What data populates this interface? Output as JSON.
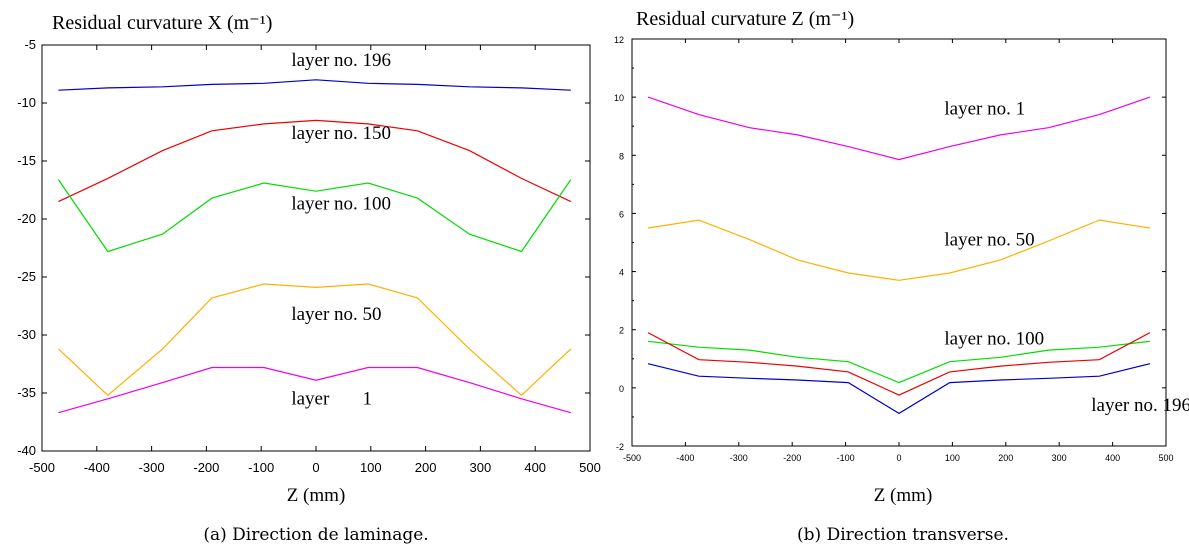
{
  "chart_data": [
    {
      "type": "line",
      "title": "Residual curvature X (m⁻¹)",
      "xlabel": "Z (mm)",
      "ylabel": "",
      "caption": "(a) Direction de laminage.",
      "xlim": [
        -500,
        500
      ],
      "ylim": [
        -40,
        -5
      ],
      "xticks": [
        -500,
        -400,
        -300,
        -200,
        -100,
        0,
        100,
        200,
        300,
        400,
        500
      ],
      "yticks": [
        -5,
        -10,
        -15,
        -20,
        -25,
        -30,
        -35,
        -40
      ],
      "series": [
        {
          "color": "#0000cc",
          "x": [
            -470,
            -380,
            -280,
            -190,
            -95,
            0,
            95,
            185,
            280,
            375,
            465
          ],
          "y": [
            -8.9,
            -8.7,
            -8.6,
            -8.4,
            -8.3,
            -8.0,
            -8.3,
            -8.4,
            -8.6,
            -8.7,
            -8.9
          ]
        },
        {
          "color": "#ee0000",
          "x": [
            -470,
            -380,
            -280,
            -190,
            -95,
            0,
            95,
            185,
            280,
            375,
            465
          ],
          "y": [
            -18.5,
            -16.5,
            -14.1,
            -12.4,
            -11.8,
            -11.5,
            -11.8,
            -12.4,
            -14.1,
            -16.5,
            -18.5
          ]
        },
        {
          "color": "#00dd00",
          "x": [
            -470,
            -380,
            -280,
            -190,
            -95,
            0,
            95,
            185,
            280,
            375,
            465
          ],
          "y": [
            -16.6,
            -22.8,
            -21.3,
            -18.2,
            -16.9,
            -17.6,
            -16.9,
            -18.2,
            -21.3,
            -22.8,
            -16.6
          ]
        },
        {
          "color": "#ffb000",
          "x": [
            -470,
            -380,
            -280,
            -190,
            -95,
            0,
            95,
            185,
            280,
            375,
            465
          ],
          "y": [
            -31.2,
            -35.2,
            -31.2,
            -26.8,
            -25.6,
            -25.9,
            -25.6,
            -26.8,
            -31.2,
            -35.2,
            -31.2
          ]
        },
        {
          "color": "#ee00ee",
          "x": [
            -470,
            -380,
            -280,
            -190,
            -95,
            0,
            95,
            185,
            280,
            375,
            465
          ],
          "y": [
            -36.7,
            -35.5,
            -34.1,
            -32.8,
            -32.8,
            -33.9,
            -32.8,
            -32.8,
            -34.1,
            -35.5,
            -36.7
          ]
        }
      ],
      "annotations": [
        {
          "text": "layer no. 196",
          "x": -45,
          "y": -6.8
        },
        {
          "text": "layer no. 150",
          "x": -45,
          "y": -13.1
        },
        {
          "text": "layer no. 100",
          "x": -45,
          "y": -19.2
        },
        {
          "text": "layer no. 50",
          "x": -45,
          "y": -28.7
        },
        {
          "text": "layer       1",
          "x": -45,
          "y": -36.0
        }
      ]
    },
    {
      "type": "line",
      "title": "Residual curvature Z (m⁻¹)",
      "xlabel": "Z (mm)",
      "ylabel": "",
      "caption": "(b) Direction transverse.",
      "xlim": [
        -500,
        500
      ],
      "ylim": [
        -2,
        12
      ],
      "xticks": [
        -500,
        -400,
        -300,
        -200,
        -100,
        0,
        100,
        200,
        300,
        400,
        500
      ],
      "yticks": [
        12,
        10,
        8,
        6,
        4,
        2,
        0,
        -2
      ],
      "series": [
        {
          "color": "#ee00ee",
          "x": [
            -470,
            -375,
            -280,
            -190,
            -95,
            0,
            95,
            190,
            280,
            375,
            470
          ],
          "y": [
            10.0,
            9.4,
            8.95,
            8.7,
            8.3,
            7.85,
            8.3,
            8.7,
            8.95,
            9.4,
            10.0
          ]
        },
        {
          "color": "#ffb000",
          "x": [
            -470,
            -375,
            -280,
            -190,
            -95,
            0,
            95,
            190,
            280,
            375,
            470
          ],
          "y": [
            5.5,
            5.77,
            5.1,
            4.4,
            3.95,
            3.7,
            3.95,
            4.4,
            5.05,
            5.77,
            5.5
          ]
        },
        {
          "color": "#00dd00",
          "x": [
            -470,
            -375,
            -280,
            -190,
            -95,
            0,
            95,
            190,
            280,
            375,
            470
          ],
          "y": [
            1.6,
            1.4,
            1.3,
            1.05,
            0.9,
            0.18,
            0.9,
            1.05,
            1.3,
            1.4,
            1.6
          ]
        },
        {
          "color": "#ee0000",
          "x": [
            -470,
            -375,
            -280,
            -190,
            -95,
            0,
            95,
            190,
            280,
            375,
            470
          ],
          "y": [
            1.9,
            0.97,
            0.88,
            0.75,
            0.55,
            -0.25,
            0.55,
            0.75,
            0.88,
            0.97,
            1.9
          ]
        },
        {
          "color": "#0000cc",
          "x": [
            -470,
            -375,
            -280,
            -190,
            -95,
            0,
            95,
            190,
            280,
            375,
            470
          ],
          "y": [
            0.83,
            0.4,
            0.33,
            0.27,
            0.18,
            -0.88,
            0.18,
            0.27,
            0.33,
            0.4,
            0.83
          ]
        }
      ],
      "annotations": [
        {
          "text": "layer no. 1",
          "x": 85,
          "y": 9.4
        },
        {
          "text": "layer no. 50",
          "x": 85,
          "y": 4.9
        },
        {
          "text": "layer no. 100",
          "x": 85,
          "y": 1.5
        },
        {
          "text": "layer no. 196",
          "x": 360,
          "y": -0.8
        }
      ]
    }
  ]
}
